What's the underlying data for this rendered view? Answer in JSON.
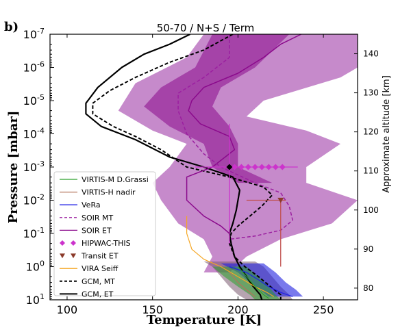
{
  "panel_label": "b)",
  "chart_data": {
    "type": "line",
    "title": "50-70 / N+S / Term",
    "xlabel": "Temperature [K]",
    "ylabel": "Pressure [mbar]",
    "y2label": "Approximate altitude [km]",
    "xlim": [
      90,
      270
    ],
    "ylim": [
      10,
      1e-07
    ],
    "yscale": "log",
    "y2lim": [
      77,
      145
    ],
    "x_ticks": [
      100,
      150,
      200,
      250
    ],
    "y_ticks": [
      {
        "value": 1e-07,
        "mant": "10",
        "exp": "-7"
      },
      {
        "value": 1e-06,
        "mant": "10",
        "exp": "-6"
      },
      {
        "value": 1e-05,
        "mant": "10",
        "exp": "-5"
      },
      {
        "value": 0.0001,
        "mant": "10",
        "exp": "-4"
      },
      {
        "value": 0.001,
        "mant": "10",
        "exp": "-3"
      },
      {
        "value": 0.01,
        "mant": "10",
        "exp": "-2"
      },
      {
        "value": 0.1,
        "mant": "10",
        "exp": "-1"
      },
      {
        "value": 1,
        "mant": "10",
        "exp": "0"
      },
      {
        "value": 10,
        "mant": "10",
        "exp": "1"
      }
    ],
    "y2_ticks": [
      80,
      90,
      100,
      110,
      120,
      130,
      140
    ],
    "legend_position": "lower-left",
    "legend": [
      {
        "name": "VIRTIS-M D.Grassi",
        "color": "#2ca02c",
        "style": "solid",
        "marker": "none"
      },
      {
        "name": "VIRTIS-H nadir",
        "color": "#b5725a",
        "style": "solid",
        "marker": "none"
      },
      {
        "name": "VeRa",
        "color": "#1f1fe6",
        "style": "solid",
        "marker": "none"
      },
      {
        "name": "SOIR MT",
        "color": "#9b1fa0",
        "style": "dashed",
        "marker": "none"
      },
      {
        "name": "SOIR ET",
        "color": "#8b0a8c",
        "style": "solid",
        "marker": "none"
      },
      {
        "name": "HIPWAC-THIS",
        "color": "#cc33cc",
        "style": "none",
        "marker": "diamond"
      },
      {
        "name": "Transit ET",
        "color": "#8b3a2a",
        "style": "none",
        "marker": "triangle-down"
      },
      {
        "name": "VIRA Seiff",
        "color": "#f5a623",
        "style": "solid",
        "marker": "none"
      },
      {
        "name": "GCM, MT",
        "color": "#000000",
        "style": "dashed",
        "marker": "none"
      },
      {
        "name": "GCM, ET",
        "color": "#000000",
        "style": "solid",
        "marker": "none"
      }
    ],
    "series": [
      {
        "name": "GCM, ET",
        "color": "#000000",
        "style": "solid",
        "width": 2.2,
        "points": [
          [
            172,
            1e-07
          ],
          [
            160,
            2e-07
          ],
          [
            145,
            4e-07
          ],
          [
            132,
            1e-06
          ],
          [
            118,
            4e-06
          ],
          [
            111,
            1.2e-05
          ],
          [
            111,
            2.5e-05
          ],
          [
            120,
            6e-05
          ],
          [
            140,
            0.00015
          ],
          [
            160,
            0.0005
          ],
          [
            180,
            0.001
          ],
          [
            197,
            0.002
          ],
          [
            201,
            0.005
          ],
          [
            200,
            0.01
          ],
          [
            199,
            0.02
          ],
          [
            197,
            0.05
          ],
          [
            195,
            0.1
          ],
          [
            196,
            0.2
          ],
          [
            198,
            0.5
          ],
          [
            201,
            1
          ],
          [
            205,
            2
          ],
          [
            209,
            4
          ],
          [
            213,
            7
          ],
          [
            214,
            10
          ]
        ]
      },
      {
        "name": "GCM, MT",
        "color": "#000000",
        "style": "dashed",
        "width": 2.0,
        "points": [
          [
            197,
            1e-07
          ],
          [
            180,
            3e-07
          ],
          [
            160,
            7e-07
          ],
          [
            140,
            2e-06
          ],
          [
            125,
            5e-06
          ],
          [
            115,
            1.2e-05
          ],
          [
            115,
            2.5e-05
          ],
          [
            127,
            6e-05
          ],
          [
            140,
            0.00012
          ],
          [
            155,
            0.0003
          ],
          [
            170,
            0.001
          ],
          [
            195,
            0.002
          ],
          [
            215,
            0.004
          ],
          [
            220,
            0.007
          ],
          [
            214,
            0.015
          ],
          [
            207,
            0.03
          ],
          [
            200,
            0.06
          ],
          [
            196,
            0.1
          ],
          [
            195,
            0.2
          ],
          [
            198,
            0.5
          ],
          [
            204,
            1
          ],
          [
            212,
            2
          ],
          [
            219,
            4
          ],
          [
            225,
            7
          ],
          [
            225,
            10
          ]
        ]
      },
      {
        "name": "SOIR ET",
        "color": "#8b0a8c",
        "style": "solid",
        "width": 1.5,
        "points": [
          [
            237,
            1e-07
          ],
          [
            225,
            2e-07
          ],
          [
            215,
            5e-07
          ],
          [
            200,
            1.5e-06
          ],
          [
            180,
            4e-06
          ],
          [
            173,
            1e-05
          ],
          [
            171,
            2e-05
          ],
          [
            178,
            5e-05
          ],
          [
            195,
            0.00012
          ],
          [
            198,
            0.0003
          ],
          [
            185,
            0.001
          ],
          [
            170,
            0.002
          ],
          [
            170,
            0.01
          ],
          [
            180,
            0.03
          ],
          [
            190,
            0.06
          ],
          [
            195,
            0.1
          ]
        ]
      },
      {
        "name": "SOIR MT",
        "color": "#9b1fa0",
        "style": "dashed",
        "width": 1.5,
        "points": [
          [
            195,
            1e-07
          ],
          [
            195,
            5e-07
          ],
          [
            180,
            2e-06
          ],
          [
            165,
            6e-06
          ],
          [
            165,
            2e-05
          ],
          [
            170,
            0.0001
          ],
          [
            180,
            0.0004
          ],
          [
            190,
            0.001
          ],
          [
            210,
            0.003
          ],
          [
            225,
            0.006
          ],
          [
            230,
            0.015
          ],
          [
            232,
            0.04
          ],
          [
            225,
            0.08
          ],
          [
            210,
            0.12
          ],
          [
            195,
            0.15
          ]
        ]
      },
      {
        "name": "VIRA Seiff",
        "color": "#f5a623",
        "style": "solid",
        "width": 1.2,
        "points": [
          [
            170,
            0.03
          ],
          [
            170,
            0.1
          ],
          [
            173,
            0.3
          ],
          [
            180,
            0.6
          ],
          [
            190,
            1
          ],
          [
            200,
            2
          ],
          [
            210,
            4
          ],
          [
            217,
            6
          ],
          [
            221,
            8
          ]
        ]
      },
      {
        "name": "VeRa",
        "color": "#1f1fe6",
        "style": "solid",
        "width": 1.2,
        "points": [
          [
            195,
            1
          ],
          [
            205,
            1.5
          ],
          [
            212,
            2.5
          ],
          [
            218,
            4
          ],
          [
            225,
            6
          ],
          [
            232,
            8
          ]
        ]
      },
      {
        "name": "VIRTIS-M D.Grassi",
        "color": "#2ca02c",
        "style": "solid",
        "width": 1.2,
        "points": [
          [
            200,
            1
          ],
          [
            205,
            2
          ],
          [
            210,
            4
          ],
          [
            215,
            7
          ],
          [
            218,
            9
          ]
        ]
      },
      {
        "name": "VIRTIS-H nadir",
        "color": "#b5725a",
        "style": "solid",
        "width": 1.2,
        "points": [
          [
            195,
            1.5
          ],
          [
            200,
            3
          ],
          [
            205,
            5
          ],
          [
            210,
            8
          ]
        ]
      }
    ],
    "bands": [
      {
        "name": "SOIR ET spread",
        "color": "#a03ca8",
        "opacity": 0.6,
        "left": [
          [
            180,
            1e-07
          ],
          [
            170,
            5e-07
          ],
          [
            140,
            3e-06
          ],
          [
            130,
            2e-05
          ],
          [
            150,
            8e-05
          ],
          [
            170,
            0.0002
          ],
          [
            160,
            0.001
          ],
          [
            150,
            0.003
          ],
          [
            155,
            0.01
          ],
          [
            165,
            0.05
          ],
          [
            180,
            0.15
          ],
          [
            185,
            0.5
          ],
          [
            180,
            1.5
          ]
        ],
        "right": [
          [
            285,
            1e-07
          ],
          [
            280,
            5e-07
          ],
          [
            260,
            2e-06
          ],
          [
            215,
            1e-05
          ],
          [
            205,
            3e-05
          ],
          [
            240,
            8e-05
          ],
          [
            260,
            0.0002
          ],
          [
            240,
            0.001
          ],
          [
            240,
            0.003
          ],
          [
            270,
            0.01
          ],
          [
            255,
            0.05
          ],
          [
            225,
            0.15
          ],
          [
            205,
            0.5
          ],
          [
            195,
            1.5
          ]
        ]
      },
      {
        "name": "SOIR MT spread",
        "color": "#8b0a8c",
        "opacity": 0.55,
        "left": [
          [
            185,
            1e-07
          ],
          [
            175,
            1e-06
          ],
          [
            155,
            4e-06
          ],
          [
            145,
            1.5e-05
          ],
          [
            160,
            6e-05
          ],
          [
            180,
            0.0002
          ],
          [
            185,
            0.001
          ],
          [
            200,
            0.003
          ]
        ],
        "right": [
          [
            230,
            1e-07
          ],
          [
            210,
            1e-06
          ],
          [
            190,
            4e-06
          ],
          [
            185,
            1.5e-05
          ],
          [
            195,
            6e-05
          ],
          [
            200,
            0.0002
          ],
          [
            200,
            0.001
          ],
          [
            220,
            0.003
          ]
        ]
      },
      {
        "name": "GCM spread",
        "color": "#7a5a70",
        "opacity": 0.55,
        "left": [
          [
            180,
            0.7
          ],
          [
            185,
            1
          ],
          [
            190,
            2
          ],
          [
            195,
            4
          ],
          [
            200,
            7
          ],
          [
            205,
            10
          ]
        ],
        "right": [
          [
            210,
            0.7
          ],
          [
            215,
            1
          ],
          [
            220,
            2
          ],
          [
            225,
            4
          ],
          [
            230,
            7
          ],
          [
            232,
            10
          ]
        ]
      },
      {
        "name": "VeRa spread",
        "color": "#2020e0",
        "opacity": 0.6,
        "left": [
          [
            190,
            0.8
          ],
          [
            200,
            1.5
          ],
          [
            207,
            3
          ],
          [
            213,
            5
          ],
          [
            218,
            8
          ]
        ],
        "right": [
          [
            215,
            0.8
          ],
          [
            222,
            1.5
          ],
          [
            228,
            3
          ],
          [
            234,
            5
          ],
          [
            238,
            8
          ]
        ]
      },
      {
        "name": "VIRTIS-M spread",
        "color": "#2ca02c",
        "opacity": 0.55,
        "left": [
          [
            185,
            1
          ],
          [
            192,
            2
          ],
          [
            200,
            4
          ],
          [
            207,
            7
          ],
          [
            210,
            10
          ]
        ],
        "right": [
          [
            205,
            1
          ],
          [
            212,
            2
          ],
          [
            218,
            4
          ],
          [
            222,
            7
          ],
          [
            225,
            10
          ]
        ]
      }
    ],
    "markers": [
      {
        "series": "HIPWAC-THIS",
        "shape": "diamond",
        "color": "#cc33cc",
        "points": [
          [
            198,
            0.001
          ],
          [
            202,
            0.001
          ],
          [
            206,
            0.001
          ],
          [
            210,
            0.001
          ],
          [
            214,
            0.001
          ],
          [
            218,
            0.001
          ],
          [
            222,
            0.001
          ],
          [
            226,
            0.001
          ]
        ]
      },
      {
        "series": "HIPWAC-THIS mean",
        "shape": "diamond",
        "color": "#000000",
        "points": [
          [
            195,
            0.001
          ]
        ]
      },
      {
        "series": "Transit ET",
        "shape": "triangle-down",
        "color": "#8b3a2a",
        "points": [
          [
            225,
            0.01
          ]
        ]
      }
    ],
    "errorbars": [
      {
        "color": "#cc33cc",
        "x": 195,
        "y": 0.001,
        "xerr": [
          175,
          235
        ],
        "yerr": [
          5e-05,
          0.2
        ]
      },
      {
        "color": "#c0504d",
        "x": 225,
        "y": 0.01,
        "xerr": [
          205,
          228
        ],
        "yerr": [
          0.01,
          1.0
        ]
      }
    ]
  }
}
